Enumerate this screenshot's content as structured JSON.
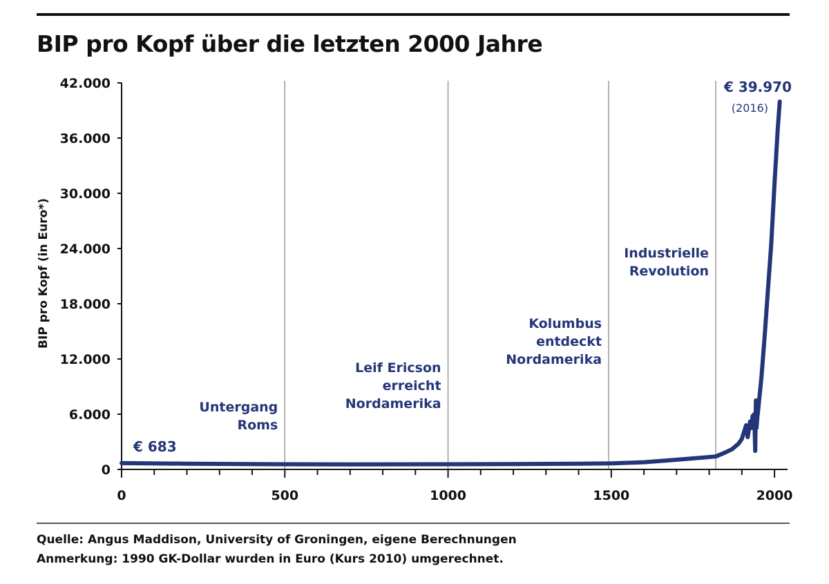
{
  "title": "BIP pro Kopf über die letzten 2000 Jahre",
  "source": "Quelle: Angus Maddison, University of Groningen, eigene Berechnungen",
  "remark": "Anmerkung: 1990 GK-Dollar wurden in Euro (Kurs 2010) umgerechnet.",
  "colors": {
    "line": "#243678",
    "label": "#243678",
    "text": "#111111",
    "grid": "#999999"
  },
  "chart_data": {
    "type": "line",
    "title": "BIP pro Kopf über die letzten 2000 Jahre",
    "xlabel": "",
    "ylabel": "BIP pro Kopf (in  Euro*)",
    "xlim": [
      0,
      2040
    ],
    "ylim": [
      0,
      42000
    ],
    "x_ticks": [
      0,
      500,
      1000,
      1500,
      2000
    ],
    "x_tick_labels": [
      "0",
      "500",
      "1000",
      "1500",
      "2000"
    ],
    "y_ticks": [
      0,
      6000,
      12000,
      18000,
      24000,
      30000,
      36000,
      42000
    ],
    "y_tick_labels": [
      "0",
      "6.000",
      "12.000",
      "18.000",
      "24.000",
      "30.000",
      "36.000",
      "42.000"
    ],
    "series": [
      {
        "name": "BIP pro Kopf",
        "x": [
          0,
          200,
          500,
          700,
          1000,
          1200,
          1400,
          1500,
          1600,
          1700,
          1820,
          1850,
          1870,
          1890,
          1900,
          1913,
          1918,
          1921,
          1925,
          1929,
          1933,
          1938,
          1941,
          1943,
          1945,
          1947,
          1950,
          1960,
          1970,
          1980,
          1990,
          2000,
          2010,
          2016
        ],
        "y": [
          683,
          620,
          560,
          550,
          560,
          580,
          620,
          650,
          780,
          1050,
          1400,
          1850,
          2200,
          2800,
          3300,
          4800,
          3500,
          4200,
          5200,
          4500,
          5800,
          6000,
          2000,
          7500,
          4500,
          5500,
          6500,
          10000,
          14500,
          19500,
          24500,
          31000,
          37000,
          39970
        ]
      }
    ],
    "vertical_markers": [
      {
        "x": 500,
        "label": [
          "Untergang",
          "Roms"
        ]
      },
      {
        "x": 1000,
        "label": [
          "Leif Ericson",
          "erreicht",
          "Nordamerika"
        ]
      },
      {
        "x": 1492,
        "label": [
          "Kolumbus",
          "entdeckt",
          "Nordamerika"
        ]
      },
      {
        "x": 1820,
        "label": [
          "Industrielle",
          "Revolution"
        ]
      }
    ],
    "annotations": [
      {
        "text": "€ 683",
        "x": 0,
        "y": 683
      },
      {
        "text": "€ 39.970",
        "x": 2016,
        "y": 39970
      },
      {
        "text": "(2016)",
        "x": 2016,
        "y": 39970
      }
    ]
  }
}
